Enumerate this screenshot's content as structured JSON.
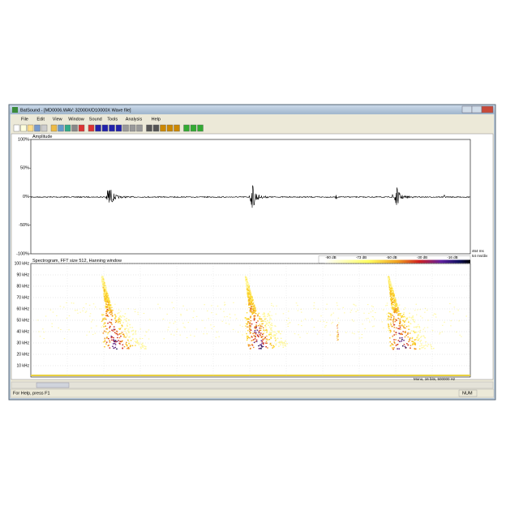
{
  "window": {
    "title": "BatSound - [MD0006.WAV: 32000X/D10000X Wave file]"
  },
  "menu": [
    "File",
    "Edit",
    "View",
    "Window",
    "Sound",
    "Tools",
    "Analysis",
    "Help"
  ],
  "amplitude": {
    "label": "Amplitude",
    "axis_labels": [
      "100%",
      "50%",
      "0%",
      "-50%",
      "-100%"
    ],
    "duration": "464 ms",
    "scale": "54 ms/div"
  },
  "spectrogram": {
    "label": "Spectrogram, FFT size 512, Hanning window",
    "colorbar_labels": [
      "-90 dB",
      "-73 dB",
      "-50 dB",
      "-30 dB",
      "-16 dB"
    ],
    "axis_labels": [
      "100 kHz",
      "90 kHz",
      "80 kHz",
      "70 kHz",
      "60 kHz",
      "50 kHz",
      "40 kHz",
      "30 kHz",
      "20 kHz",
      "10 kHz"
    ],
    "format": "Mono, 16 bits, 500000 Hz"
  },
  "status": {
    "help": "For Help, press F1",
    "num": "NUM"
  }
}
